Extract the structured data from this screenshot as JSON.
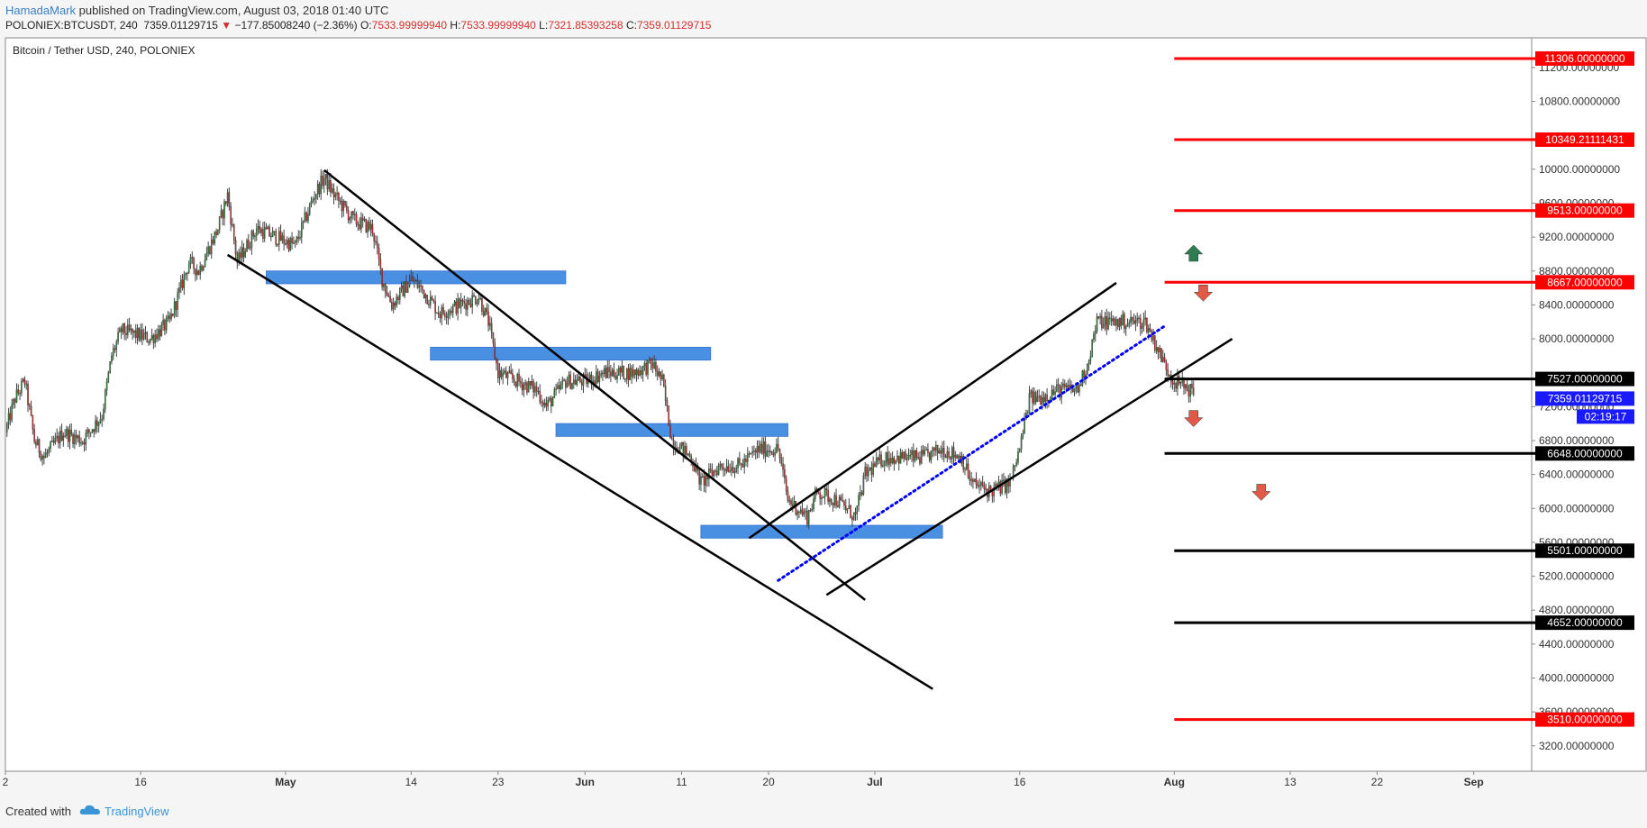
{
  "header": {
    "author": "HamadaMark",
    "published": " published on TradingView.com, August 03, 2018 01:40 UTC",
    "symbol": "POLONIEX:BTCUSDT, 240",
    "last": "7359.01129715",
    "arrow": "▼",
    "change": "−177.85008240 (−2.36%)",
    "o_label": "O:",
    "o_value": "7533.99999940",
    "h_label": "H:",
    "h_value": "7533.99999940",
    "l_label": "L:",
    "l_value": "7321.85393258",
    "c_label": "C:",
    "c_value": "7359.01129715"
  },
  "footer": {
    "created_with": "Created with",
    "brand": "TradingView"
  },
  "chart_data": {
    "type": "candlestick",
    "title": "Bitcoin / Tether USD, 240, POLONIEX",
    "ylim": [
      2900,
      11550
    ],
    "x_range": [
      "2018-04-02",
      "2018-09-07"
    ],
    "y_ticks": [
      "11200.00000000",
      "10800.00000000",
      "10000.00000000",
      "9600.00000000",
      "9200.00000000",
      "8800.00000000",
      "8400.00000000",
      "8000.00000000",
      "7200.00000000",
      "6800.00000000",
      "6400.00000000",
      "6000.00000000",
      "5600.00000000",
      "5200.00000000",
      "4800.00000000",
      "4400.00000000",
      "4000.00000000",
      "3600.00000000",
      "3200.00000000"
    ],
    "x_ticks": [
      {
        "label": "2",
        "date": "2018-04-02"
      },
      {
        "label": "16",
        "date": "2018-04-16"
      },
      {
        "label": "May",
        "date": "2018-05-01"
      },
      {
        "label": "14",
        "date": "2018-05-14"
      },
      {
        "label": "23",
        "date": "2018-05-23"
      },
      {
        "label": "Jun",
        "date": "2018-06-01"
      },
      {
        "label": "11",
        "date": "2018-06-11"
      },
      {
        "label": "20",
        "date": "2018-06-20"
      },
      {
        "label": "Jul",
        "date": "2018-07-01"
      },
      {
        "label": "16",
        "date": "2018-07-16"
      },
      {
        "label": "Aug",
        "date": "2018-08-01"
      },
      {
        "label": "13",
        "date": "2018-08-13"
      },
      {
        "label": "22",
        "date": "2018-08-22"
      },
      {
        "label": "Sep",
        "date": "2018-09-01"
      }
    ],
    "price_path": [
      [
        "2018-04-02",
        6900
      ],
      [
        "2018-04-03",
        7300
      ],
      [
        "2018-04-04",
        7500
      ],
      [
        "2018-04-05",
        6800
      ],
      [
        "2018-04-06",
        6600
      ],
      [
        "2018-04-08",
        6900
      ],
      [
        "2018-04-10",
        6800
      ],
      [
        "2018-04-12",
        7100
      ],
      [
        "2018-04-13",
        7800
      ],
      [
        "2018-04-14",
        8100
      ],
      [
        "2018-04-17",
        8000
      ],
      [
        "2018-04-19",
        8200
      ],
      [
        "2018-04-21",
        8900
      ],
      [
        "2018-04-22",
        8800
      ],
      [
        "2018-04-24",
        9300
      ],
      [
        "2018-04-25",
        9700
      ],
      [
        "2018-04-26",
        8900
      ],
      [
        "2018-04-28",
        9300
      ],
      [
        "2018-04-30",
        9200
      ],
      [
        "2018-05-02",
        9100
      ],
      [
        "2018-05-04",
        9700
      ],
      [
        "2018-05-05",
        9900
      ],
      [
        "2018-05-06",
        9700
      ],
      [
        "2018-05-08",
        9400
      ],
      [
        "2018-05-10",
        9300
      ],
      [
        "2018-05-11",
        8700
      ],
      [
        "2018-05-12",
        8400
      ],
      [
        "2018-05-14",
        8700
      ],
      [
        "2018-05-15",
        8600
      ],
      [
        "2018-05-17",
        8300
      ],
      [
        "2018-05-19",
        8400
      ],
      [
        "2018-05-21",
        8500
      ],
      [
        "2018-05-22",
        8200
      ],
      [
        "2018-05-23",
        7600
      ],
      [
        "2018-05-25",
        7500
      ],
      [
        "2018-05-27",
        7400
      ],
      [
        "2018-05-28",
        7200
      ],
      [
        "2018-05-30",
        7500
      ],
      [
        "2018-06-01",
        7500
      ],
      [
        "2018-06-03",
        7600
      ],
      [
        "2018-06-06",
        7600
      ],
      [
        "2018-06-08",
        7700
      ],
      [
        "2018-06-09",
        7500
      ],
      [
        "2018-06-10",
        6800
      ],
      [
        "2018-06-12",
        6600
      ],
      [
        "2018-06-13",
        6300
      ],
      [
        "2018-06-15",
        6500
      ],
      [
        "2018-06-17",
        6500
      ],
      [
        "2018-06-19",
        6700
      ],
      [
        "2018-06-20",
        6700
      ],
      [
        "2018-06-21",
        6700
      ],
      [
        "2018-06-22",
        6100
      ],
      [
        "2018-06-24",
        5900
      ],
      [
        "2018-06-25",
        6200
      ],
      [
        "2018-06-27",
        6100
      ],
      [
        "2018-06-29",
        5900
      ],
      [
        "2018-06-30",
        6400
      ],
      [
        "2018-07-02",
        6600
      ],
      [
        "2018-07-04",
        6600
      ],
      [
        "2018-07-06",
        6600
      ],
      [
        "2018-07-08",
        6700
      ],
      [
        "2018-07-10",
        6600
      ],
      [
        "2018-07-11",
        6300
      ],
      [
        "2018-07-13",
        6200
      ],
      [
        "2018-07-15",
        6300
      ],
      [
        "2018-07-16",
        6700
      ],
      [
        "2018-07-17",
        7300
      ],
      [
        "2018-07-18",
        7300
      ],
      [
        "2018-07-20",
        7400
      ],
      [
        "2018-07-22",
        7400
      ],
      [
        "2018-07-23",
        7700
      ],
      [
        "2018-07-24",
        8200
      ],
      [
        "2018-07-25",
        8200
      ],
      [
        "2018-07-27",
        8200
      ],
      [
        "2018-07-29",
        8200
      ],
      [
        "2018-07-31",
        7700
      ],
      [
        "2018-08-01",
        7500
      ],
      [
        "2018-08-02",
        7450
      ],
      [
        "2018-08-03",
        7359
      ]
    ],
    "levels": [
      {
        "value": 11306,
        "label": "11306.00000000",
        "color": "#ff0000",
        "date_from": "2018-08-01"
      },
      {
        "value": 10349.21111431,
        "label": "10349.21111431",
        "color": "#ff0000",
        "date_from": "2018-08-01"
      },
      {
        "value": 9513,
        "label": "9513.00000000",
        "color": "#ff0000",
        "date_from": "2018-08-01"
      },
      {
        "value": 8667,
        "label": "8667.00000000",
        "color": "#ff0000",
        "date_from": "2018-07-31"
      },
      {
        "value": 7527,
        "label": "7527.00000000",
        "color": "#000000",
        "date_from": "2018-07-31"
      },
      {
        "value": 6648,
        "label": "6648.00000000",
        "color": "#000000",
        "date_from": "2018-07-31"
      },
      {
        "value": 5501,
        "label": "5501.00000000",
        "color": "#000000",
        "date_from": "2018-08-01"
      },
      {
        "value": 4652,
        "label": "4652.00000000",
        "color": "#000000",
        "date_from": "2018-08-01"
      },
      {
        "value": 3510,
        "label": "3510.00000000",
        "color": "#ff0000",
        "date_from": "2018-08-01"
      }
    ],
    "last_price": {
      "value": 7359.01129715,
      "label": "7359.01129715",
      "color": "#1a1aff"
    },
    "countdown": "02:19:17",
    "zones": [
      {
        "from": "2018-04-29",
        "to": "2018-05-30",
        "low": 8650,
        "high": 8800
      },
      {
        "from": "2018-05-16",
        "to": "2018-06-14",
        "low": 7750,
        "high": 7900
      },
      {
        "from": "2018-05-29",
        "to": "2018-06-22",
        "low": 6850,
        "high": 7000
      },
      {
        "from": "2018-06-13",
        "to": "2018-07-08",
        "low": 5650,
        "high": 5800
      }
    ],
    "trend_lines": [
      {
        "from": [
          "2018-05-05",
          9990
        ],
        "to": [
          "2018-06-30",
          4920
        ],
        "style": "solid",
        "color": "#000000"
      },
      {
        "from": [
          "2018-04-25",
          8990
        ],
        "to": [
          "2018-07-07",
          3870
        ],
        "style": "solid",
        "color": "#000000"
      },
      {
        "from": [
          "2018-06-18",
          5650
        ],
        "to": [
          "2018-07-26",
          8660
        ],
        "style": "solid",
        "color": "#000000"
      },
      {
        "from": [
          "2018-06-26",
          4980
        ],
        "to": [
          "2018-08-07",
          8000
        ],
        "style": "solid",
        "color": "#000000"
      },
      {
        "from": [
          "2018-06-21",
          5150
        ],
        "to": [
          "2018-07-31",
          8150
        ],
        "style": "dotted",
        "color": "#0000ff"
      }
    ],
    "arrows": [
      {
        "date": "2018-08-03",
        "price": 9000,
        "dir": "up",
        "color": "#2e7d52"
      },
      {
        "date": "2018-08-04",
        "price": 8550,
        "dir": "down",
        "color": "#e05a47"
      },
      {
        "date": "2018-08-03",
        "price": 7070,
        "dir": "down",
        "color": "#e05a47"
      },
      {
        "date": "2018-08-10",
        "price": 6200,
        "dir": "down",
        "color": "#e05a47"
      }
    ]
  }
}
